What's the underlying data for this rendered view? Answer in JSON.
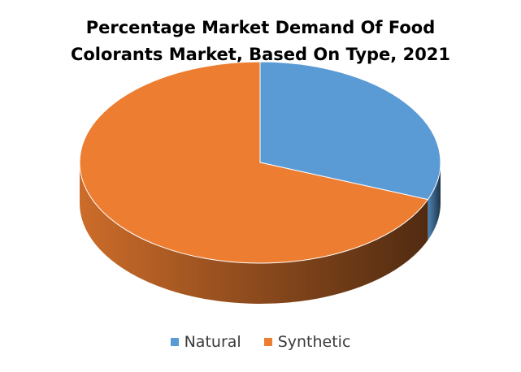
{
  "title_lines": [
    "Percentage Market Demand Of Food",
    "Colorants Market, Based On Type, 2021"
  ],
  "chart_data": {
    "type": "pie",
    "title": "Percentage Market Demand Of Food Colorants Market, Based On Type, 2021",
    "style": "3d",
    "categories": [
      "Natural",
      "Synthetic"
    ],
    "values": [
      31,
      69
    ],
    "unit": "%",
    "colors": [
      "#5B9BD5",
      "#ED7D31"
    ],
    "legend_position": "bottom"
  }
}
